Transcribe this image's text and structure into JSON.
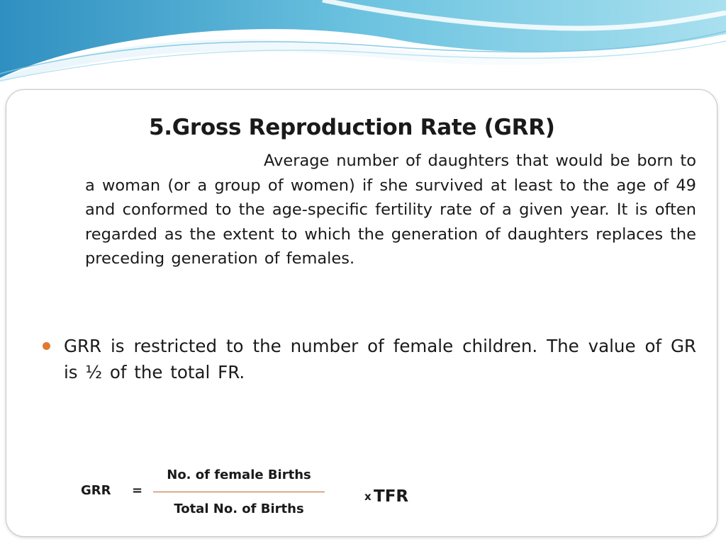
{
  "slide": {
    "title": "5.Gross Reproduction Rate (GRR)",
    "definition": "Average number of daughters that would be born to a woman (or a group of women) if she survived at least to the age of 49 and conformed to the age-specific fertility rate of a given year. It is often regarded as the extent to which the generation of daughters replaces the preceding generation of females.",
    "bullets": [
      {
        "text": "GRR is restricted to the number of female children. The value of GR is ½ of the total FR."
      }
    ],
    "formula": {
      "lhs": "GRR",
      "equals": "=",
      "numerator": "No. of female Births",
      "denominator": "Total No. of Births",
      "multiplier": "x",
      "factor": "TFR"
    }
  },
  "colors": {
    "bullet": "#e07a2e",
    "fraction_bar": "#c0622a",
    "header_wave": "#5ab4d6",
    "text": "#1a1a1a"
  }
}
